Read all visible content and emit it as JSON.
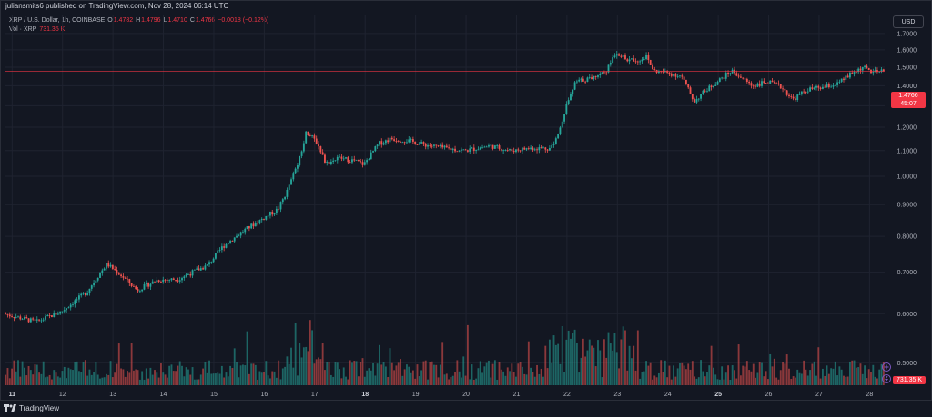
{
  "header": {
    "publisher_line": "juliansmits6 published on TradingView.com, Nov 28, 2024 06:14 UTC"
  },
  "legend": {
    "symbol": "XRP / U.S. Dollar, 1h, COINBASE",
    "o_label": "O",
    "o_value": "1.4782",
    "h_label": "H",
    "h_value": "1.4796",
    "l_label": "L",
    "l_value": "1.4710",
    "c_label": "C",
    "c_value": "1.4766",
    "change": "−0.0018 (−0.12%)",
    "vol_label": "Vol · XRP",
    "vol_value": "731.35 K"
  },
  "currency_button": "USD",
  "price_tag": {
    "price": "1.4766",
    "countdown": "45:07"
  },
  "volume_tag": "731.35 K",
  "footer": {
    "brand": "TradingView"
  },
  "colors": {
    "up": "#26a69a",
    "down": "#ef5350",
    "background": "#131722",
    "grid": "#1f2330",
    "text": "#b2b5be",
    "last_price": "#f23645"
  },
  "icons": [
    "plus-circle-icon",
    "lightning-icon",
    "tradingview-logo-icon"
  ],
  "chart_data": {
    "type": "candlestick",
    "interval": "1h",
    "y_scale": "log",
    "y_ticks": [
      "1.7000",
      "1.6000",
      "1.5000",
      "1.4000",
      "1.3000",
      "1.2000",
      "1.1000",
      "1.0000",
      "0.9000",
      "0.8000",
      "0.7000",
      "0.6000",
      "0.5000"
    ],
    "x_ticks": [
      {
        "label": "11",
        "bold": true,
        "day": 11
      },
      {
        "label": "12",
        "bold": false,
        "day": 12
      },
      {
        "label": "13",
        "bold": false,
        "day": 13
      },
      {
        "label": "14",
        "bold": false,
        "day": 14
      },
      {
        "label": "15",
        "bold": false,
        "day": 15
      },
      {
        "label": "16",
        "bold": false,
        "day": 16
      },
      {
        "label": "17",
        "bold": false,
        "day": 17
      },
      {
        "label": "18",
        "bold": true,
        "day": 18
      },
      {
        "label": "19",
        "bold": false,
        "day": 19
      },
      {
        "label": "20",
        "bold": false,
        "day": 20
      },
      {
        "label": "21",
        "bold": false,
        "day": 21
      },
      {
        "label": "22",
        "bold": false,
        "day": 22
      },
      {
        "label": "23",
        "bold": false,
        "day": 23
      },
      {
        "label": "24",
        "bold": false,
        "day": 24
      },
      {
        "label": "25",
        "bold": true,
        "day": 25
      },
      {
        "label": "26",
        "bold": false,
        "day": 26
      },
      {
        "label": "27",
        "bold": false,
        "day": 27
      },
      {
        "label": "28",
        "bold": false,
        "day": 28
      }
    ],
    "x_range_days": [
      10.85,
      28.3
    ],
    "y_range": [
      0.46,
      1.74
    ],
    "last_price": 1.4766,
    "price_path": [
      [
        10.85,
        0.6
      ],
      [
        11.5,
        0.582
      ],
      [
        12.0,
        0.605
      ],
      [
        12.5,
        0.65
      ],
      [
        12.9,
        0.722
      ],
      [
        13.2,
        0.69
      ],
      [
        13.5,
        0.655
      ],
      [
        13.9,
        0.68
      ],
      [
        14.3,
        0.682
      ],
      [
        14.9,
        0.718
      ],
      [
        15.2,
        0.77
      ],
      [
        15.6,
        0.815
      ],
      [
        16.0,
        0.855
      ],
      [
        16.3,
        0.885
      ],
      [
        16.5,
        0.955
      ],
      [
        16.75,
        1.085
      ],
      [
        16.85,
        1.18
      ],
      [
        17.05,
        1.14
      ],
      [
        17.25,
        1.05
      ],
      [
        17.5,
        1.07
      ],
      [
        17.8,
        1.06
      ],
      [
        18.0,
        1.045
      ],
      [
        18.3,
        1.13
      ],
      [
        18.55,
        1.15
      ],
      [
        18.9,
        1.14
      ],
      [
        19.2,
        1.125
      ],
      [
        19.6,
        1.11
      ],
      [
        20.0,
        1.1
      ],
      [
        20.5,
        1.12
      ],
      [
        20.9,
        1.1
      ],
      [
        21.3,
        1.11
      ],
      [
        21.7,
        1.11
      ],
      [
        21.85,
        1.17
      ],
      [
        22.0,
        1.29
      ],
      [
        22.2,
        1.42
      ],
      [
        22.5,
        1.44
      ],
      [
        22.8,
        1.48
      ],
      [
        23.0,
        1.59
      ],
      [
        23.2,
        1.54
      ],
      [
        23.45,
        1.54
      ],
      [
        23.6,
        1.56
      ],
      [
        23.75,
        1.48
      ],
      [
        24.0,
        1.47
      ],
      [
        24.3,
        1.45
      ],
      [
        24.55,
        1.32
      ],
      [
        24.75,
        1.37
      ],
      [
        25.0,
        1.42
      ],
      [
        25.3,
        1.48
      ],
      [
        25.5,
        1.44
      ],
      [
        25.7,
        1.4
      ],
      [
        26.0,
        1.42
      ],
      [
        26.3,
        1.39
      ],
      [
        26.5,
        1.33
      ],
      [
        26.8,
        1.38
      ],
      [
        27.1,
        1.39
      ],
      [
        27.4,
        1.41
      ],
      [
        27.7,
        1.47
      ],
      [
        27.9,
        1.5
      ],
      [
        28.1,
        1.47
      ],
      [
        28.3,
        1.4766
      ]
    ],
    "volume_note": "volume histogram bars below candles; last bar 731.35 K"
  }
}
